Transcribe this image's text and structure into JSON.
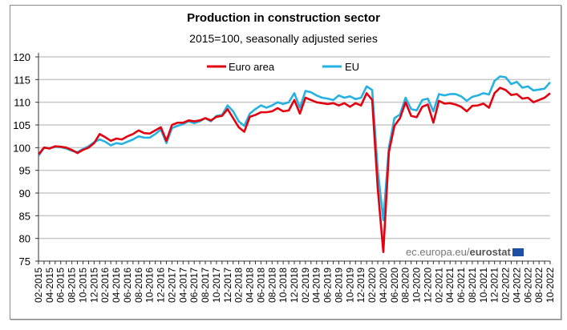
{
  "chart_data": {
    "type": "line",
    "title": "Production in construction sector",
    "subtitle": "2015=100, seasonally adjusted series",
    "xlabel": "",
    "ylabel": "",
    "ylim": [
      75,
      120
    ],
    "yticks": [
      75,
      80,
      85,
      90,
      95,
      100,
      105,
      110,
      115,
      120
    ],
    "xtick_labels": [
      "02-2015",
      "04-2015",
      "06-2015",
      "08-2015",
      "10-2015",
      "12-2015",
      "02-2016",
      "04-2016",
      "06-2016",
      "08-2016",
      "10-2016",
      "12-2016",
      "02-2017",
      "04-2017",
      "06-2017",
      "08-2017",
      "10-2017",
      "12-2017",
      "02-2018",
      "04-2018",
      "06-2018",
      "08-2018",
      "10-2018",
      "12-2018",
      "02-2019",
      "04-2019",
      "06-2019",
      "08-2019",
      "10-2019",
      "12-2019",
      "02-2020",
      "04-2020",
      "06-2020",
      "08-2020",
      "10-2020",
      "12-2020",
      "02-2021",
      "04-2021",
      "06-2021",
      "08-2021",
      "10-2021",
      "12-2021",
      "02-2022",
      "04-2022",
      "06-2022",
      "08-2022",
      "10-2022"
    ],
    "x_range": [
      "02-2015",
      "10-2022"
    ],
    "x_step": "monthly",
    "grid": "horizontal",
    "legend": "top-center",
    "series": [
      {
        "name": "Euro area",
        "color": "#e3000f",
        "values": [
          98.5,
          100,
          99.8,
          100.3,
          100.2,
          100,
          99.5,
          98.8,
          99.5,
          100,
          101,
          103,
          102.3,
          101.5,
          102,
          101.8,
          102.5,
          103,
          103.8,
          103.2,
          103.1,
          103.8,
          104.5,
          101.5,
          105,
          105.5,
          105.5,
          106,
          105.8,
          106,
          106.5,
          106,
          106.8,
          107,
          108.5,
          106.5,
          104.5,
          103.5,
          106.8,
          107.2,
          107.8,
          107.8,
          108,
          108.7,
          108,
          108.2,
          110.5,
          107.5,
          111,
          110.5,
          110,
          109.8,
          109.6,
          109.8,
          109.3,
          109.8,
          109,
          109.8,
          109.3,
          112,
          110.5,
          91,
          77,
          99,
          104.8,
          106.5,
          110,
          107,
          106.7,
          109,
          109.5,
          105.5,
          110.3,
          109.7,
          109.8,
          109.5,
          109,
          108,
          109.2,
          109.3,
          109.7,
          108.8,
          112,
          113.2,
          112.7,
          111.6,
          111.8,
          110.8,
          111,
          110,
          110.5,
          111,
          112
        ]
      },
      {
        "name": "EU",
        "color": "#25b2e0",
        "values": [
          98.2,
          100,
          99.9,
          100.2,
          100.1,
          99.8,
          99.3,
          99,
          99.7,
          100.3,
          101.2,
          101.8,
          101.3,
          100.5,
          101,
          100.8,
          101.3,
          101.8,
          102.5,
          102.2,
          102.2,
          103,
          104,
          101,
          104.3,
          104.8,
          105.2,
          105.8,
          105.4,
          105.8,
          106.5,
          105.8,
          107,
          107.2,
          109.3,
          108,
          105.8,
          104.8,
          107.5,
          108.5,
          109.3,
          108.8,
          109.3,
          110,
          109.6,
          110,
          112,
          108.8,
          112.5,
          112.2,
          111.5,
          111,
          110.8,
          110.5,
          111.5,
          111,
          111.3,
          110.7,
          111,
          113.5,
          112.7,
          95,
          84,
          100,
          106.5,
          107.3,
          111,
          108.5,
          108.2,
          110.5,
          110.8,
          108,
          111.8,
          111.5,
          111.8,
          111.8,
          111.3,
          110.3,
          111.2,
          111.5,
          112,
          111.7,
          114.7,
          115.7,
          115.5,
          114,
          114.5,
          113.2,
          113.5,
          112.6,
          112.8,
          113,
          114.4
        ]
      }
    ]
  },
  "source": {
    "prefix": "ec.europa.eu/",
    "brand": "eurostat"
  },
  "colors": {
    "grid": "#c8c8c8",
    "axis": "#333333",
    "flag": "#1f4fa5"
  }
}
